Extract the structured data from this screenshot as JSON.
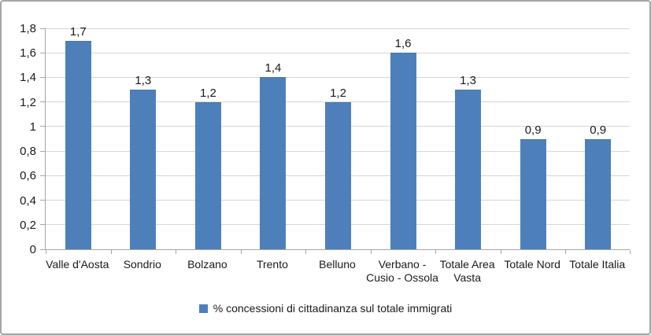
{
  "chart": {
    "legend_label": "% concessioni di cittadinanza sul totale immigrati",
    "colors": {
      "bar": "#4d80bb",
      "gridline": "#d6d6d6",
      "axis": "#a6a6a6",
      "text": "#1a1a1a",
      "frame_border": "#a6a6a6"
    }
  },
  "chart_data": {
    "type": "bar",
    "title": "",
    "xlabel": "",
    "ylabel": "",
    "categories": [
      "Valle d'Aosta",
      "Sondrio",
      "Bolzano",
      "Trento",
      "Belluno",
      "Verbano - Cusio - Ossola",
      "Totale Area Vasta",
      "Totale Nord",
      "Totale Italia"
    ],
    "values": [
      1.7,
      1.3,
      1.2,
      1.4,
      1.2,
      1.6,
      1.3,
      0.9,
      0.9
    ],
    "value_labels": [
      "1,7",
      "1,3",
      "1,2",
      "1,4",
      "1,2",
      "1,6",
      "1,3",
      "0,9",
      "0,9"
    ],
    "ylim": [
      0,
      1.8
    ],
    "ytick_values": [
      0,
      0.2,
      0.4,
      0.6,
      0.8,
      1,
      1.2,
      1.4,
      1.6,
      1.8
    ],
    "ytick_labels": [
      "0",
      "0,2",
      "0,4",
      "0,6",
      "0,8",
      "1",
      "1,2",
      "1,4",
      "1,6",
      "1,8"
    ],
    "grid": true,
    "legend": [
      "% concessioni di cittadinanza sul totale immigrati"
    ],
    "legend_position": "bottom"
  }
}
